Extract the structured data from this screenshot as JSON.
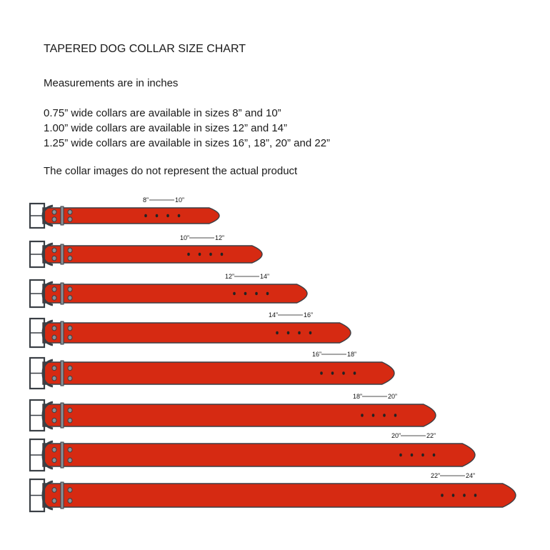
{
  "title": "TAPERED DOG COLLAR SIZE CHART",
  "measurements_note": "Measurements are in inches",
  "availability": [
    "0.75” wide collars are available in sizes 8” and 10”",
    "1.00” wide collars are available in sizes 12” and 14”",
    "1.25” wide collars are available in sizes 16”, 18”, 20” and 22”"
  ],
  "disclaimer": "The collar images do not represent the actual product",
  "colors": {
    "strap": "#d62a12",
    "outline": "#3a3f45",
    "hardware": "#8a9096"
  },
  "collars": [
    {
      "from": "8”",
      "to": "10”"
    },
    {
      "from": "10”",
      "to": "12”"
    },
    {
      "from": "12”",
      "to": "14”"
    },
    {
      "from": "14”",
      "to": "16”"
    },
    {
      "from": "16”",
      "to": "18”"
    },
    {
      "from": "18”",
      "to": "20”"
    },
    {
      "from": "20”",
      "to": "22”"
    },
    {
      "from": "22”",
      "to": "24”"
    }
  ]
}
